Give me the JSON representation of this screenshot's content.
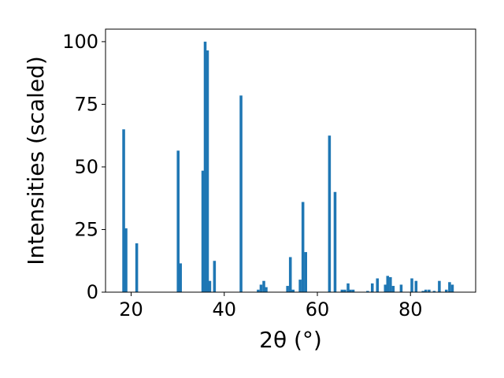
{
  "chart_data": {
    "type": "bar",
    "xlabel": "2θ (°)",
    "ylabel": "Intensities (scaled)",
    "xlim": [
      14.5,
      94
    ],
    "ylim": [
      0,
      105
    ],
    "xticks": [
      20,
      40,
      60,
      80
    ],
    "yticks": [
      0,
      25,
      50,
      75,
      100
    ],
    "bar_width": 0.6,
    "bar_color": "#1f77b4",
    "grid": false,
    "x": [
      18.4,
      18.9,
      21.2,
      30.1,
      30.6,
      35.4,
      35.9,
      36.4,
      36.9,
      37.9,
      43.6,
      47.3,
      47.9,
      48.5,
      49.0,
      53.6,
      54.2,
      54.8,
      56.3,
      56.9,
      57.5,
      62.6,
      63.8,
      65.3,
      65.9,
      66.6,
      67.1,
      67.7,
      70.8,
      71.8,
      72.9,
      74.6,
      75.1,
      75.7,
      76.3,
      78.0,
      80.3,
      81.2,
      82.7,
      83.3,
      84.0,
      85.1,
      86.2,
      87.7,
      88.4,
      89.0
    ],
    "values": [
      65,
      25.5,
      19.5,
      56.5,
      11.5,
      48.5,
      100,
      96.5,
      4.5,
      12.5,
      78.5,
      1,
      3,
      4.5,
      2,
      2.5,
      14,
      1,
      5,
      36,
      16,
      62.5,
      40,
      1,
      1,
      3.5,
      1,
      1,
      0.5,
      3.5,
      5.5,
      3,
      6.5,
      6,
      2.5,
      3,
      5.5,
      4.5,
      0.5,
      1,
      1,
      0.5,
      4.5,
      1,
      4,
      3
    ]
  }
}
